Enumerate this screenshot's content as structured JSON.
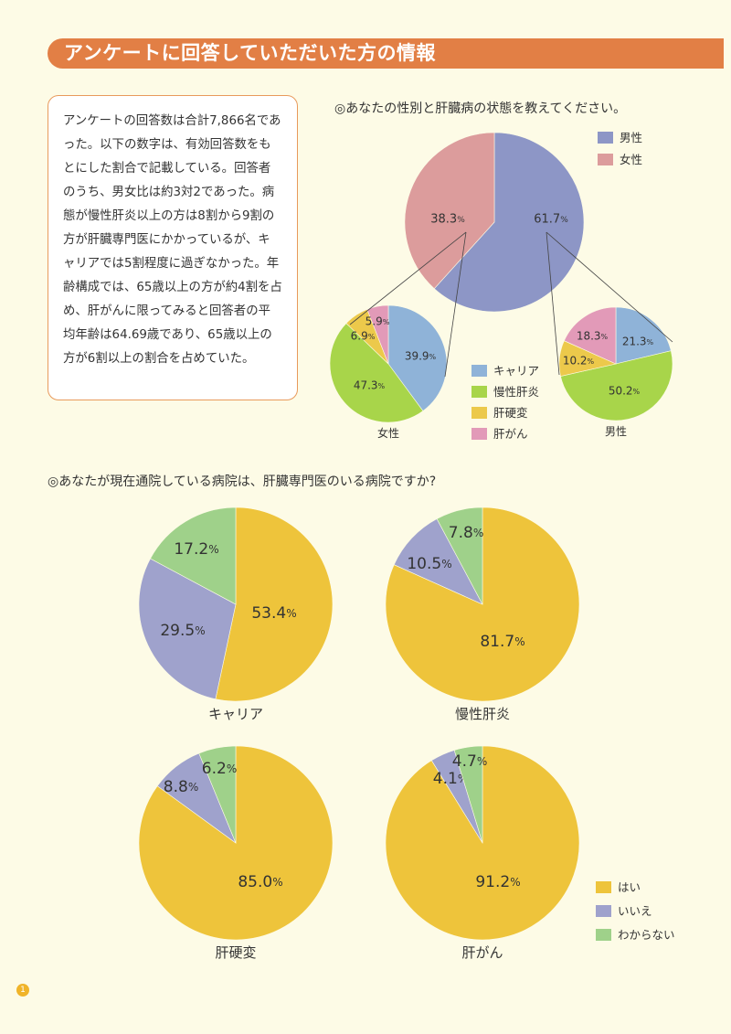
{
  "header": {
    "title": "アンケートに回答していただいた方の情報"
  },
  "summary": {
    "text": "アンケートの回答数は合計7,866名であった。以下の数字は、有効回答数をもとにした割合で記載している。回答者のうち、男女比は約3対2であった。病態が慢性肝炎以上の方は8割から9割の方が肝臓専門医にかかっているが、キャリアでは5割程度に過ぎなかった。年齢構成では、65歳以上の方が約4割を占め、肝がんに限ってみると回答者の平均年齢は64.69歳であり、65歳以上の方が6割以上の割合を占めていた。"
  },
  "questions": {
    "q1": "◎あなたの性別と肝臓病の状態を教えてください。",
    "q2": "◎あなたが現在通院している病院は、肝臓専門医のいる病院ですか?"
  },
  "legends": {
    "gender": [
      {
        "label": "男性",
        "color": "#8d96c6"
      },
      {
        "label": "女性",
        "color": "#dc9c9c"
      }
    ],
    "condition": [
      {
        "label": "キャリア",
        "color": "#8fb3d8"
      },
      {
        "label": "慢性肝炎",
        "color": "#a8d54a"
      },
      {
        "label": "肝硬変",
        "color": "#ecc94b"
      },
      {
        "label": "肝がん",
        "color": "#e29ab8"
      }
    ],
    "answer": [
      {
        "label": "はい",
        "color": "#eec43b"
      },
      {
        "label": "いいえ",
        "color": "#9fa2cc"
      },
      {
        "label": "わからない",
        "color": "#9fd18a"
      }
    ]
  },
  "page_number": "1",
  "chart_data": [
    {
      "id": "gender",
      "type": "pie",
      "title": "",
      "slices": [
        {
          "label": "男性",
          "value": 61.7,
          "color": "#8d96c6"
        },
        {
          "label": "女性",
          "value": 38.3,
          "color": "#dc9c9c"
        }
      ]
    },
    {
      "id": "female",
      "type": "pie",
      "title": "女性",
      "slices": [
        {
          "label": "キャリア",
          "value": 39.9,
          "color": "#8fb3d8"
        },
        {
          "label": "慢性肝炎",
          "value": 47.3,
          "color": "#a8d54a"
        },
        {
          "label": "肝硬変",
          "value": 6.9,
          "color": "#ecc94b"
        },
        {
          "label": "肝がん",
          "value": 5.9,
          "color": "#e29ab8"
        }
      ]
    },
    {
      "id": "male",
      "type": "pie",
      "title": "男性",
      "slices": [
        {
          "label": "キャリア",
          "value": 21.3,
          "color": "#8fb3d8"
        },
        {
          "label": "慢性肝炎",
          "value": 50.2,
          "color": "#a8d54a"
        },
        {
          "label": "肝硬変",
          "value": 10.2,
          "color": "#ecc94b"
        },
        {
          "label": "肝がん",
          "value": 18.3,
          "color": "#e29ab8"
        }
      ]
    },
    {
      "id": "carrier",
      "type": "pie",
      "title": "キャリア",
      "slices": [
        {
          "label": "はい",
          "value": 53.4,
          "color": "#eec43b"
        },
        {
          "label": "いいえ",
          "value": 29.5,
          "color": "#9fa2cc"
        },
        {
          "label": "わからない",
          "value": 17.2,
          "color": "#9fd18a"
        }
      ]
    },
    {
      "id": "chronic",
      "type": "pie",
      "title": "慢性肝炎",
      "slices": [
        {
          "label": "はい",
          "value": 81.7,
          "color": "#eec43b"
        },
        {
          "label": "いいえ",
          "value": 10.5,
          "color": "#9fa2cc"
        },
        {
          "label": "わからない",
          "value": 7.8,
          "color": "#9fd18a"
        }
      ]
    },
    {
      "id": "cirrhosis",
      "type": "pie",
      "title": "肝硬変",
      "slices": [
        {
          "label": "はい",
          "value": 85.0,
          "color": "#eec43b"
        },
        {
          "label": "いいえ",
          "value": 8.8,
          "color": "#9fa2cc"
        },
        {
          "label": "わからない",
          "value": 6.2,
          "color": "#9fd18a"
        }
      ]
    },
    {
      "id": "cancer",
      "type": "pie",
      "title": "肝がん",
      "slices": [
        {
          "label": "はい",
          "value": 91.2,
          "color": "#eec43b"
        },
        {
          "label": "いいえ",
          "value": 4.1,
          "color": "#9fa2cc"
        },
        {
          "label": "わからない",
          "value": 4.7,
          "color": "#9fd18a"
        }
      ]
    }
  ]
}
